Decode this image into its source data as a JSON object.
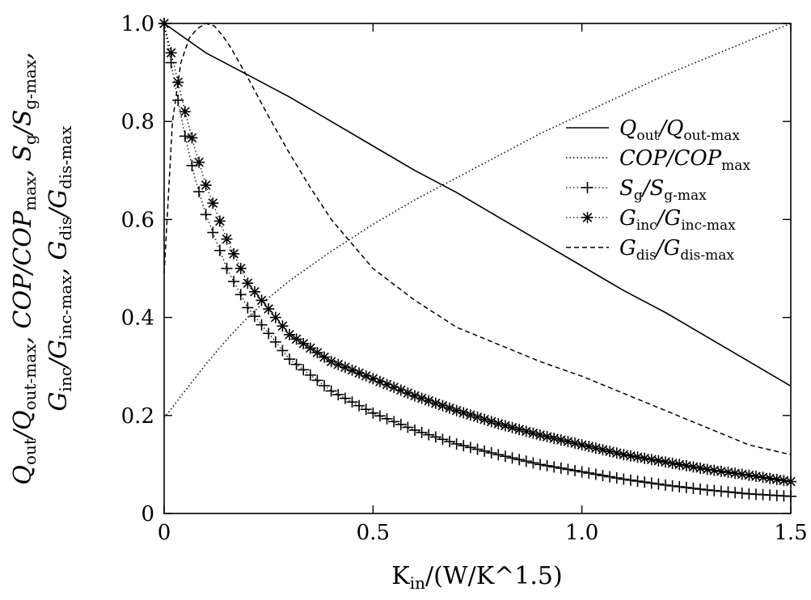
{
  "chart_data": {
    "type": "line",
    "title": "",
    "xlabel": "K_in/(W/K^1.5)",
    "ylabel": "Q_out/Q_out-max, COP/COP_max, S_g/S_g-max, G_inc/G_inc-max, G_dis/G_dis-max",
    "xlim": [
      0,
      1.5
    ],
    "ylim": [
      0,
      1.0
    ],
    "xticks": [
      0,
      0.5,
      1.0,
      1.5
    ],
    "xtick_labels": [
      "0",
      "0.5",
      "1.0",
      "1.5"
    ],
    "yticks": [
      0,
      0.2,
      0.4,
      0.6,
      0.8,
      1.0
    ],
    "ytick_labels": [
      "0",
      "0.2",
      "0.4",
      "0.6",
      "0.8",
      "1.0"
    ],
    "grid": false,
    "legend_position": "top-right",
    "series": [
      {
        "id": "qout",
        "name": "Q_out/Q_out-max",
        "style": "solid",
        "x": [
          0,
          0.1,
          0.2,
          0.3,
          0.4,
          0.5,
          0.6,
          0.7,
          0.8,
          0.9,
          1.0,
          1.1,
          1.2,
          1.3,
          1.4,
          1.5
        ],
        "y": [
          1.0,
          0.94,
          0.895,
          0.85,
          0.8,
          0.75,
          0.7,
          0.655,
          0.605,
          0.555,
          0.505,
          0.455,
          0.41,
          0.36,
          0.31,
          0.26
        ]
      },
      {
        "id": "cop",
        "name": "COP/COP_max",
        "style": "dotted",
        "x": [
          0,
          0.05,
          0.1,
          0.15,
          0.2,
          0.25,
          0.3,
          0.4,
          0.5,
          0.6,
          0.7,
          0.8,
          0.9,
          1.0,
          1.1,
          1.2,
          1.3,
          1.4,
          1.5
        ],
        "y": [
          0.195,
          0.25,
          0.305,
          0.355,
          0.4,
          0.44,
          0.475,
          0.535,
          0.59,
          0.64,
          0.685,
          0.73,
          0.775,
          0.815,
          0.855,
          0.895,
          0.93,
          0.965,
          1.0
        ]
      },
      {
        "id": "sg",
        "name": "S_g/S_g-max",
        "style": "dotted+plus",
        "x": [
          0,
          0.025,
          0.05,
          0.075,
          0.1,
          0.15,
          0.2,
          0.3,
          0.4,
          0.5,
          0.6,
          0.7,
          0.8,
          0.9,
          1.0,
          1.1,
          1.2,
          1.3,
          1.4,
          1.5
        ],
        "y": [
          1.0,
          0.88,
          0.77,
          0.68,
          0.61,
          0.5,
          0.42,
          0.315,
          0.25,
          0.205,
          0.17,
          0.142,
          0.12,
          0.1,
          0.085,
          0.07,
          0.058,
          0.048,
          0.04,
          0.035
        ]
      },
      {
        "id": "ginc",
        "name": "G_inc/G_inc-max",
        "style": "dotted+asterisk",
        "x": [
          0,
          0.025,
          0.05,
          0.075,
          0.1,
          0.15,
          0.2,
          0.3,
          0.4,
          0.5,
          0.6,
          0.7,
          0.8,
          0.9,
          1.0,
          1.1,
          1.2,
          1.3,
          1.4,
          1.5
        ],
        "y": [
          1.0,
          0.91,
          0.82,
          0.74,
          0.67,
          0.56,
          0.47,
          0.365,
          0.31,
          0.275,
          0.24,
          0.21,
          0.183,
          0.16,
          0.14,
          0.12,
          0.105,
          0.09,
          0.078,
          0.065
        ]
      },
      {
        "id": "gdis",
        "name": "G_dis/G_dis-max",
        "style": "dashed",
        "x": [
          0,
          0.02,
          0.04,
          0.06,
          0.08,
          0.1,
          0.12,
          0.14,
          0.16,
          0.2,
          0.25,
          0.3,
          0.35,
          0.4,
          0.5,
          0.6,
          0.7,
          0.8,
          0.9,
          1.0,
          1.1,
          1.2,
          1.3,
          1.4,
          1.5
        ],
        "y": [
          0.49,
          0.8,
          0.92,
          0.97,
          0.99,
          1.0,
          0.995,
          0.975,
          0.95,
          0.89,
          0.81,
          0.735,
          0.665,
          0.6,
          0.5,
          0.435,
          0.38,
          0.345,
          0.31,
          0.28,
          0.245,
          0.21,
          0.175,
          0.14,
          0.12
        ]
      }
    ]
  }
}
